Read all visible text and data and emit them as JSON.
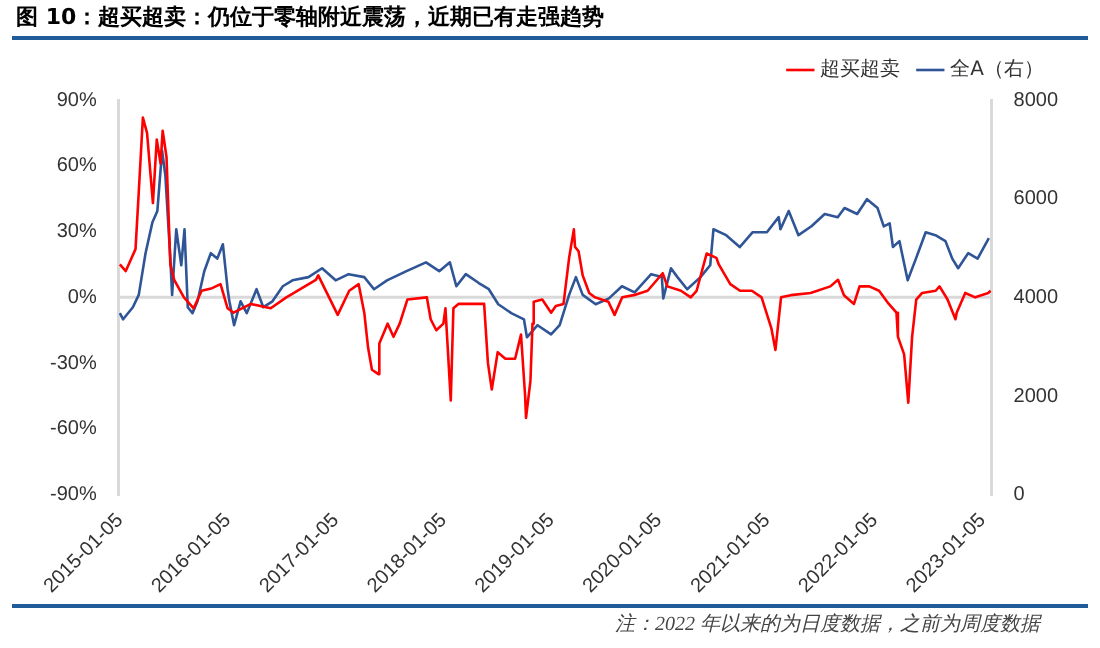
{
  "chart_data": {
    "type": "line",
    "title": "图 10：超买超卖：仍位于零轴附近震荡，近期已有走强趋势",
    "annotations": [
      "注：2022 年以来的为日度数据，之前为周度数据"
    ],
    "xlim": [
      "2015-01-01",
      "2023-02-05"
    ],
    "xticks": [
      "2015-01-05",
      "2016-01-05",
      "2017-01-05",
      "2018-01-05",
      "2019-01-05",
      "2020-01-05",
      "2021-01-05",
      "2022-01-05",
      "2023-01-05"
    ],
    "ylim": [
      -90,
      90
    ],
    "yticks": [
      {
        "value": -90,
        "label": "-90%"
      },
      {
        "value": -60,
        "label": "-60%"
      },
      {
        "value": -30,
        "label": "-30%"
      },
      {
        "value": 0,
        "label": "0%"
      },
      {
        "value": 30,
        "label": "30%"
      },
      {
        "value": 60,
        "label": "60%"
      },
      {
        "value": 90,
        "label": "90%"
      }
    ],
    "y2lim": [
      0,
      8000
    ],
    "y2ticks": [
      0,
      2000,
      4000,
      6000,
      8000
    ],
    "ref_lines": [
      {
        "axis": "y",
        "value": 0,
        "color": "#d9d9d9"
      }
    ],
    "legend": "top right",
    "series": [
      {
        "name": "超买超卖",
        "color": "#ff0000",
        "type": "line",
        "x": [
          "2015-01-05",
          "2015-01-25",
          "2015-02-27",
          "2015-03-10",
          "2015-03-24",
          "2015-04-07",
          "2015-04-27",
          "2015-05-10",
          "2015-05-23",
          "2015-05-30",
          "2015-06-12",
          "2015-06-25",
          "2015-07-08",
          "2015-08-10",
          "2015-09-12",
          "2015-10-09",
          "2015-11-10",
          "2015-12-12",
          "2016-01-05",
          "2016-01-25",
          "2016-03-24",
          "2016-05-30",
          "2016-07-22",
          "2016-10-30",
          "2016-11-07",
          "2017-01-12",
          "2017-02-20",
          "2017-03-24",
          "2017-04-12",
          "2017-04-25",
          "2017-05-08",
          "2017-05-30",
          "2017-06-02",
          "2017-06-30",
          "2017-07-20",
          "2017-08-10",
          "2017-09-05",
          "2017-11-10",
          "2017-11-23",
          "2017-12-12",
          "2018-01-05",
          "2018-01-12",
          "2018-01-30",
          "2018-02-08",
          "2018-02-25",
          "2018-05-23",
          "2018-06-05",
          "2018-06-18",
          "2018-07-08",
          "2018-08-03",
          "2018-09-05",
          "2018-09-25",
          "2018-10-09",
          "2018-10-12",
          "2018-10-27",
          "2018-11-03",
          "2018-11-07",
          "2018-12-06",
          "2019-01-05",
          "2019-01-21",
          "2019-02-16",
          "2019-03-07",
          "2019-03-23",
          "2019-03-27",
          "2019-04-08",
          "2019-04-22",
          "2019-05-14",
          "2019-06-02",
          "2019-07-18",
          "2019-08-08",
          "2019-09-03",
          "2019-10-12",
          "2019-11-28",
          "2020-01-18",
          "2020-02-03",
          "2020-03-20",
          "2020-04-22",
          "2020-05-12",
          "2020-06-15",
          "2020-07-18",
          "2020-07-26",
          "2020-09-03",
          "2020-10-06",
          "2020-11-15",
          "2020-12-18",
          "2021-01-20",
          "2021-02-03",
          "2021-02-22",
          "2021-03-27",
          "2021-06-02",
          "2021-08-08",
          "2021-09-03",
          "2021-09-23",
          "2021-10-27",
          "2021-11-15",
          "2021-12-18",
          "2022-01-20",
          "2022-02-22",
          "2022-03-20",
          "2022-03-25",
          "2022-04-15",
          "2022-04-29",
          "2022-05-12",
          "2022-05-26",
          "2022-06-15",
          "2022-07-31",
          "2022-08-13",
          "2022-09-09",
          "2022-10-06",
          "2022-10-10",
          "2022-11-08",
          "2022-12-12",
          "2023-01-25",
          "2023-02-02"
        ],
        "values": [
          15,
          12,
          22,
          48,
          82,
          75,
          43,
          72,
          61,
          76,
          64,
          15,
          8,
          0,
          -5,
          3,
          4,
          6,
          -5,
          -7,
          -3,
          -5,
          0,
          8,
          10,
          -8,
          3,
          6,
          -7,
          -23,
          -33,
          -35,
          -21,
          -12,
          -18,
          -12,
          -1,
          0,
          -10,
          -15,
          -12,
          -5,
          -47,
          -5,
          -3,
          -3,
          -30,
          -42,
          -25,
          -28,
          -28,
          -17,
          -45,
          -55,
          -38,
          -12,
          -2,
          -1,
          -7,
          -4,
          -3,
          18,
          31,
          23,
          21,
          10,
          2,
          0,
          -2,
          -8,
          0,
          1,
          3,
          11,
          5,
          3,
          0,
          3,
          20,
          18,
          15,
          6,
          3,
          3,
          0,
          -14,
          -24,
          0,
          1,
          2,
          5,
          8,
          1,
          -3,
          5,
          5,
          3,
          -3,
          -7,
          -18,
          -26,
          -48,
          -18,
          -1,
          2,
          3,
          5,
          -1,
          -10,
          -7,
          2,
          0,
          2,
          3
        ]
      },
      {
        "name": "全A（右）",
        "color": "#2f5597",
        "type": "line",
        "axis": "y2",
        "x": [
          "2015-01-05",
          "2015-01-16",
          "2015-02-18",
          "2015-03-10",
          "2015-04-02",
          "2015-04-25",
          "2015-05-12",
          "2015-05-28",
          "2015-06-08",
          "2015-06-25",
          "2015-07-01",
          "2015-07-15",
          "2015-08-01",
          "2015-08-12",
          "2015-08-23",
          "2015-09-08",
          "2015-09-25",
          "2015-10-18",
          "2015-11-09",
          "2015-12-01",
          "2015-12-20",
          "2016-01-05",
          "2016-01-11",
          "2016-01-27",
          "2016-02-18",
          "2016-03-10",
          "2016-04-12",
          "2016-05-05",
          "2016-06-05",
          "2016-07-10",
          "2016-08-12",
          "2016-10-05",
          "2016-11-20",
          "2017-01-05",
          "2017-02-18",
          "2017-04-12",
          "2017-05-15",
          "2017-06-28",
          "2017-09-02",
          "2017-11-07",
          "2017-12-22",
          "2018-01-27",
          "2018-02-18",
          "2018-03-22",
          "2018-05-05",
          "2018-06-08",
          "2018-07-10",
          "2018-08-23",
          "2018-10-05",
          "2018-10-15",
          "2018-11-20",
          "2019-01-05",
          "2019-02-03",
          "2019-03-07",
          "2019-03-30",
          "2019-04-22",
          "2019-06-05",
          "2019-07-20",
          "2019-09-02",
          "2019-10-15",
          "2019-12-10",
          "2020-01-15",
          "2020-01-20",
          "2020-02-15",
          "2020-03-08",
          "2020-04-10",
          "2020-05-25",
          "2020-06-27",
          "2020-07-08",
          "2020-08-20",
          "2020-10-05",
          "2020-11-18",
          "2021-01-05",
          "2021-02-14",
          "2021-02-20",
          "2021-03-20",
          "2021-04-22",
          "2021-06-05",
          "2021-07-20",
          "2021-09-02",
          "2021-09-25",
          "2021-11-07",
          "2021-12-10",
          "2022-01-15",
          "2022-02-05",
          "2022-02-25",
          "2022-03-08",
          "2022-03-30",
          "2022-04-27",
          "2022-05-25",
          "2022-06-27",
          "2022-07-30",
          "2022-09-02",
          "2022-09-25",
          "2022-10-15",
          "2022-11-18",
          "2022-12-20",
          "2023-01-27"
        ],
        "values": [
          3680,
          3555,
          3800,
          4050,
          4895,
          5515,
          5750,
          6975,
          6480,
          4785,
          4050,
          5380,
          4650,
          5380,
          3800,
          3680,
          3920,
          4530,
          4895,
          4785,
          5075,
          4165,
          3920,
          3435,
          3920,
          3680,
          4165,
          3800,
          3920,
          4225,
          4345,
          4410,
          4590,
          4345,
          4470,
          4410,
          4165,
          4345,
          4530,
          4710,
          4530,
          4710,
          4225,
          4470,
          4290,
          4165,
          3860,
          3680,
          3555,
          3190,
          3435,
          3250,
          3435,
          4050,
          4410,
          4050,
          3860,
          3980,
          4225,
          4100,
          4470,
          4410,
          3980,
          4590,
          4410,
          4165,
          4410,
          4650,
          5380,
          5260,
          5020,
          5320,
          5320,
          5625,
          5380,
          5750,
          5260,
          5440,
          5690,
          5625,
          5810,
          5690,
          5990,
          5810,
          5440,
          5500,
          5020,
          5140,
          4345,
          4785,
          5320,
          5260,
          5140,
          4785,
          4590,
          4895,
          4785,
          5200
        ]
      }
    ]
  }
}
